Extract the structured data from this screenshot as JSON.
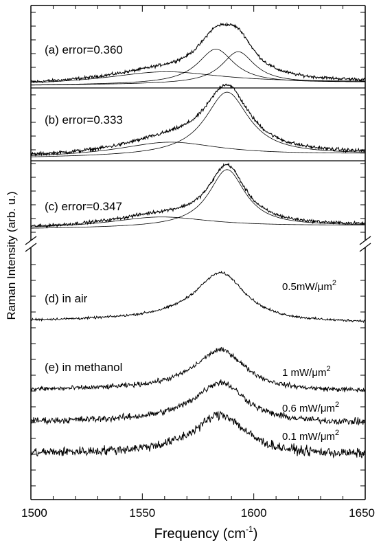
{
  "chart_data": {
    "type": "line",
    "xlabel": "Frequency (cm",
    "xlabel_sup": "-1",
    "xlabel_tail": ")",
    "ylabel": "Raman Intensity (arb. u.)",
    "xlim": [
      1500,
      1650
    ],
    "x_ticks": [
      {
        "value": 1500,
        "label": "1500"
      },
      {
        "value": 1550,
        "label": "1550"
      },
      {
        "value": 1600,
        "label": "1600"
      },
      {
        "value": 1650,
        "label": "1650"
      }
    ],
    "x_minor_step": 10,
    "y_axis_break": true,
    "grid": false,
    "line_color": "#000000",
    "panels": [
      {
        "id": "a",
        "label": "(a) error=0.360",
        "y": [
          0,
          1.0
        ],
        "fit_components": [
          {
            "center": 1560,
            "width": 32,
            "height": 0.18
          },
          {
            "center": 1583,
            "width": 10,
            "height": 0.5
          },
          {
            "center": 1593,
            "width": 9,
            "height": 0.46
          }
        ]
      },
      {
        "id": "b",
        "label": "(b) error=0.333",
        "y": [
          0,
          1.0
        ],
        "fit_components": [
          {
            "center": 1562,
            "width": 28,
            "height": 0.18
          },
          {
            "center": 1588,
            "width": 12,
            "height": 0.8
          }
        ]
      },
      {
        "id": "c",
        "label": "(c) error=0.347",
        "y": [
          0,
          1.0
        ],
        "fit_components": [
          {
            "center": 1558,
            "width": 28,
            "height": 0.15
          },
          {
            "center": 1588,
            "width": 10,
            "height": 0.8
          }
        ]
      }
    ],
    "spectra": [
      {
        "id": "d",
        "label": "(d) in air",
        "power": "0.5mW/μm",
        "power_sup": "2",
        "y": [
          0,
          1.0
        ],
        "noise": 0.02
      },
      {
        "id": "e1",
        "label": "(e) in methanol",
        "power": "1 mW/μm",
        "power_sup": "2",
        "y": [
          0,
          1.0
        ],
        "noise": 0.05
      },
      {
        "id": "e2",
        "label": "",
        "power": "0.6 mW/μm",
        "power_sup": "2",
        "y": [
          0,
          1.0
        ],
        "noise": 0.07
      },
      {
        "id": "e3",
        "label": "",
        "power": "0.1 mW/μm",
        "power_sup": "2",
        "y": [
          0,
          1.0
        ],
        "noise": 0.1
      }
    ]
  }
}
